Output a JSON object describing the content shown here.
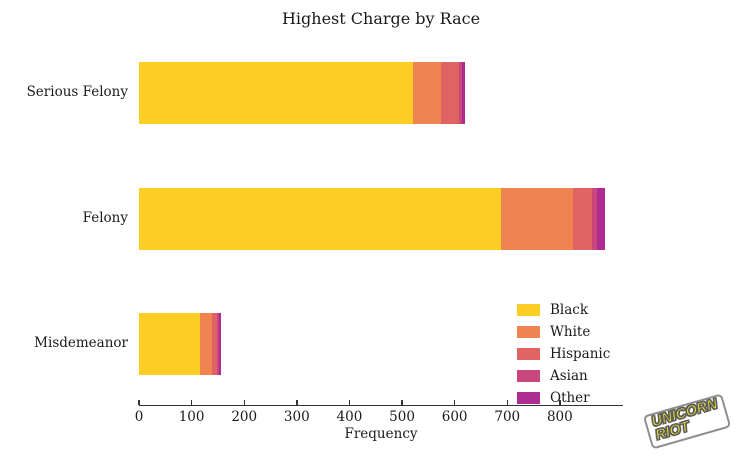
{
  "watermark": {
    "line1": "UNICORN",
    "line2": "RIOT"
  },
  "text_color": "#1a1a1a",
  "axis_color": "#333333",
  "chart_data": {
    "type": "bar",
    "orientation": "horizontal",
    "stacked": true,
    "title": "Highest Charge by Race",
    "xlabel": "Frequency",
    "ylabel": "",
    "grid": false,
    "legend_position": "lower right",
    "xlim": [
      0,
      920
    ],
    "x_ticks": [
      0,
      100,
      200,
      300,
      400,
      500,
      600,
      700,
      800
    ],
    "categories": [
      "Serious Felony",
      "Felony",
      "Misdemeanor"
    ],
    "series": [
      {
        "name": "Black",
        "color": "#fcce25",
        "values": [
          520,
          688,
          116
        ]
      },
      {
        "name": "White",
        "color": "#ef8450",
        "values": [
          54,
          137,
          23
        ]
      },
      {
        "name": "Hispanic",
        "color": "#e06364",
        "values": [
          35,
          37,
          10
        ]
      },
      {
        "name": "Asian",
        "color": "#ca477b",
        "values": [
          5,
          8,
          4
        ]
      },
      {
        "name": "Other",
        "color": "#ae2c92",
        "values": [
          6,
          15,
          2
        ]
      }
    ]
  }
}
